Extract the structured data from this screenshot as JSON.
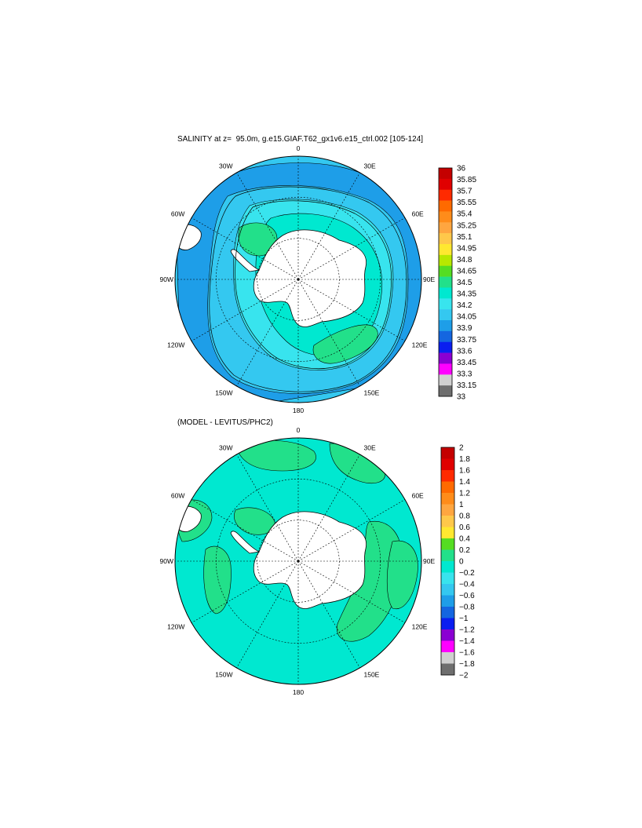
{
  "panels": [
    {
      "title": "SALINITY at z=  95.0m, g.e15.GIAF.T62_gx1v6.e15_ctrl.002 [105-124]",
      "colorbar_labels": [
        "36",
        "35.85",
        "35.7",
        "35.55",
        "35.4",
        "35.25",
        "35.1",
        "34.95",
        "34.8",
        "34.65",
        "34.5",
        "34.35",
        "34.2",
        "34.05",
        "33.9",
        "33.75",
        "33.6",
        "33.45",
        "33.3",
        "33.15",
        "33"
      ],
      "colors": [
        "#c40000",
        "#e00000",
        "#ff2a00",
        "#ff6a00",
        "#ff8c1a",
        "#ffa640",
        "#ffc84a",
        "#ffe830",
        "#b8e800",
        "#55dd22",
        "#22e08a",
        "#00e8d0",
        "#38e4ee",
        "#34c8f0",
        "#1e9ee8",
        "#1466e0",
        "#0a1ef0",
        "#8a00d2",
        "#ff00ff",
        "#d0d0d0",
        "#6e6e6e"
      ],
      "base_color": "#34c8f0",
      "ocean_zones": [
        {
          "name": "outer-band",
          "color": "#1e9ee8"
        },
        {
          "name": "mid-band",
          "color": "#34c8f0"
        },
        {
          "name": "inner-band",
          "color": "#38e4ee"
        },
        {
          "name": "shelf-band",
          "color": "#00e8d0"
        },
        {
          "name": "patch",
          "color": "#22e08a"
        }
      ]
    },
    {
      "title": "(MODEL - LEVITUS/PHC2)",
      "colorbar_labels": [
        "2",
        "1.8",
        "1.6",
        "1.4",
        "1.2",
        "1",
        "0.8",
        "0.6",
        "0.4",
        "0.2",
        "0",
        "−0.2",
        "−0.4",
        "−0.6",
        "−0.8",
        "−1",
        "−1.2",
        "−1.4",
        "−1.6",
        "−1.8",
        "−2"
      ],
      "colors": [
        "#c40000",
        "#e00000",
        "#ff2a00",
        "#ff6a00",
        "#ff8c1a",
        "#ffa640",
        "#ffc84a",
        "#ffe830",
        "#55dd22",
        "#22e08a",
        "#00e8d0",
        "#38e4ee",
        "#34c8f0",
        "#1e9ee8",
        "#1466e0",
        "#0a1ef0",
        "#8a00d2",
        "#ff00ff",
        "#d0d0d0",
        "#6e6e6e"
      ],
      "base_color": "#00e8d0",
      "ocean_zones": [
        {
          "name": "patch",
          "color": "#22e08a"
        }
      ]
    }
  ],
  "longitude_labels": {
    "0": "0",
    "30E": "30E",
    "60E": "60E",
    "90E": "90E",
    "120E": "120E",
    "150E": "150E",
    "180": "180",
    "150W": "150W",
    "120W": "120W",
    "90W": "90W",
    "60W": "60W",
    "30W": "30W"
  },
  "colors": {
    "land": "#ffffff",
    "coast": "#000000",
    "grid": "#000000"
  }
}
